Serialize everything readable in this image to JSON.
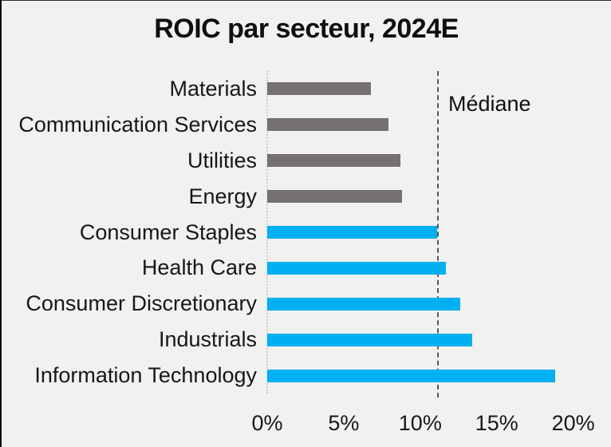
{
  "window": {
    "background_color": "#f1f1f0",
    "border_color": "#000000"
  },
  "chart_data": {
    "type": "bar",
    "orientation": "horizontal",
    "title": "ROIC par secteur, 2024E",
    "categories": [
      "Materials",
      "Communication Services",
      "Utilities",
      "Energy",
      "Consumer Staples",
      "Health Care",
      "Consumer Discretionary",
      "Industrials",
      "Information Technology"
    ],
    "values": [
      6.8,
      7.9,
      8.7,
      8.8,
      11.1,
      11.7,
      12.6,
      13.4,
      18.8
    ],
    "unit": "%",
    "bar_colors": [
      "#767171",
      "#767171",
      "#767171",
      "#767171",
      "#00B0F0",
      "#00B0F0",
      "#00B0F0",
      "#00B0F0",
      "#00B0F0"
    ],
    "colors": {
      "below_median_bar": "#767171",
      "at_or_above_median_bar": "#00B0F0"
    },
    "xlabel": "",
    "ylabel": "",
    "xlim": [
      0,
      22.5
    ],
    "xticks": {
      "labels": [
        "0%",
        "5%",
        "10%",
        "15%",
        "20%"
      ],
      "values": [
        0,
        5,
        10,
        15,
        20
      ]
    },
    "gridlines": false,
    "legend": "none",
    "median": {
      "label": "Médiane",
      "value": 11.1,
      "line_style": "dashed",
      "line_color": "#595959"
    }
  }
}
